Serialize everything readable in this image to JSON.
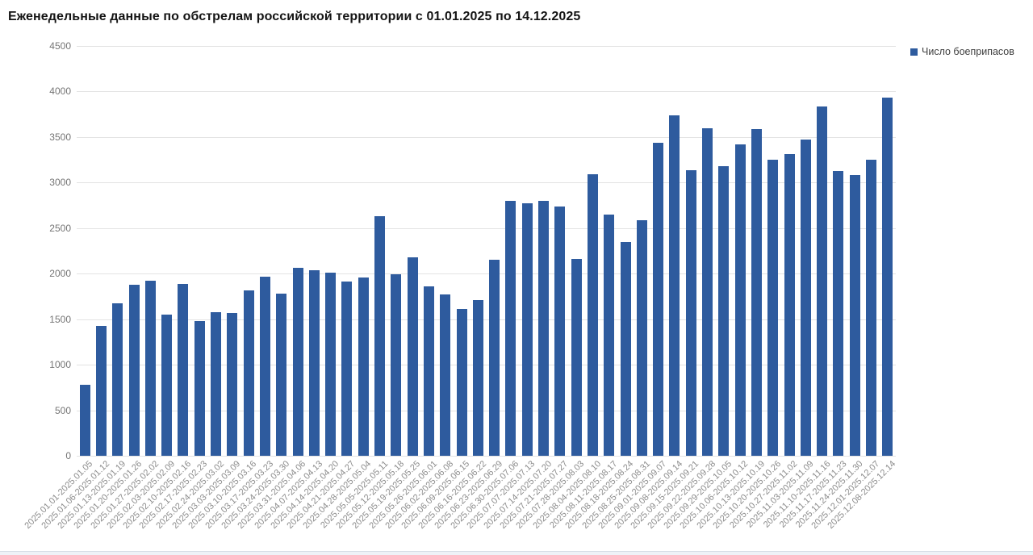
{
  "chart_data": {
    "type": "bar",
    "title": "Еженедельные данные по обстрелам российской территории с 01.01.2025 по 14.12.2025",
    "series_name": "Число боеприпасов",
    "xlabel": "",
    "ylabel": "",
    "ylim": [
      0,
      4500
    ],
    "y_ticks": [
      0,
      500,
      1000,
      1500,
      2000,
      2500,
      3000,
      3500,
      4000,
      4500
    ],
    "grid": true,
    "legend_position": "top-right",
    "bar_color": "#2e5b9e",
    "categories": [
      "2025.01.01-2025.01.05",
      "2025.01.06-2025.01.12",
      "2025.01.13-2025.01.19",
      "2025.01.20-2025.01.26",
      "2025.01.27-2025.02.02",
      "2025.02.03-2025.02.09",
      "2025.02.10-2025.02.16",
      "2025.02.17-2025.02.23",
      "2025.02.24-2025.03.02",
      "2025.03.03-2025.03.09",
      "2025.03.10-2025.03.16",
      "2025.03.17-2025.03.23",
      "2025.03.24-2025.03.30",
      "2025.03.31-2025.04.06",
      "2025.04.07-2025.04.13",
      "2025.04.14-2025.04.20",
      "2025.04.21-2025.04.27",
      "2025.04.28-2025.05.04",
      "2025.05.05-2025.05.11",
      "2025.05.12-2025.05.18",
      "2025.05.19-2025.05.25",
      "2025.05.26-2025.06.01",
      "2025.06.02-2025.06.08",
      "2025.06.09-2025.06.15",
      "2025.06.16-2025.06.22",
      "2025.06.23-2025.06.29",
      "2025.06.30-2025.07.06",
      "2025.07.07-2025.07.13",
      "2025.07.14-2025.07.20",
      "2025.07.21-2025.07.27",
      "2025.07.28-2025.08.03",
      "2025.08.04-2025.08.10",
      "2025.08.11-2025.08.17",
      "2025.08.18-2025.08.24",
      "2025.08.25-2025.08.31",
      "2025.09.01-2025.09.07",
      "2025.09.08-2025.09.14",
      "2025.09.15-2025.09.21",
      "2025.09.22-2025.09.28",
      "2025.09.29-2025.10.05",
      "2025.10.06-2025.10.12",
      "2025.10.13-2025.10.19",
      "2025.10.20-2025.10.26",
      "2025.10.27-2025.11.02",
      "2025.11.03-2025.11.09",
      "2025.11.10-2025.11.16",
      "2025.11.17-2025.11.23",
      "2025.11.24-2025.11.30",
      "2025.12.01-2025.12.07",
      "2025.12.08-2025.12.14"
    ],
    "values": [
      780,
      1430,
      1670,
      1880,
      1920,
      1550,
      1890,
      1480,
      1580,
      1570,
      1820,
      1970,
      1780,
      2060,
      2040,
      2010,
      1910,
      1960,
      2630,
      1990,
      2180,
      1860,
      1770,
      1610,
      1710,
      2150,
      2800,
      2770,
      2800,
      2740,
      2160,
      3090,
      2650,
      2350,
      2590,
      3440,
      3740,
      3140,
      3600,
      3180,
      3420,
      3590,
      3250,
      3310,
      3470,
      3840,
      3130,
      3080,
      3250,
      3930
    ]
  },
  "legend": {
    "label": "Число боеприпасов",
    "marker_color": "#2e5b9e"
  },
  "colors": {
    "bar": "#2e5b9e",
    "gridline": "#e3e3e3",
    "y_tick_text": "#757575",
    "x_tick_text": "#8c8c8c",
    "title_text": "#141414"
  }
}
